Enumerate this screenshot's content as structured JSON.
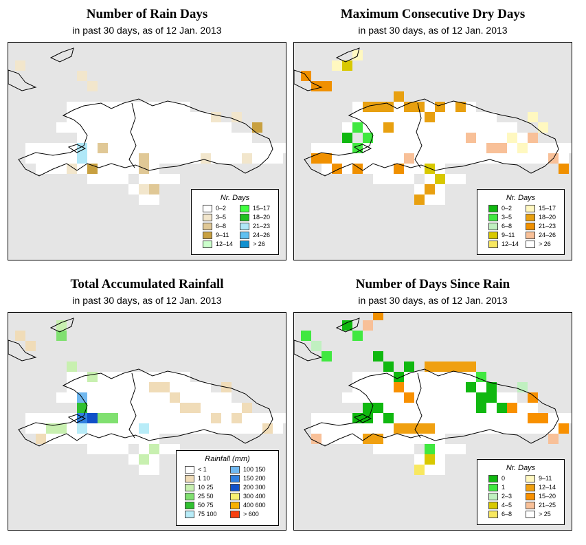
{
  "panels": [
    {
      "id": "rain-days",
      "title": "Number of Rain Days",
      "subtitle": "in past 30 days, as of  12 Jan. 2013",
      "legend": {
        "title": "Nr. Days",
        "cols": [
          [
            {
              "label": "0–2",
              "color": "#ffffff"
            },
            {
              "label": "3–5",
              "color": "#f2e6cc"
            },
            {
              "label": "6–8",
              "color": "#e0c896"
            },
            {
              "label": "9–11",
              "color": "#c8a040"
            },
            {
              "label": "12–14",
              "color": "#ccffcc"
            }
          ],
          [
            {
              "label": "15–17",
              "color": "#40ff40"
            },
            {
              "label": "18–20",
              "color": "#20c020"
            },
            {
              "label": "21–23",
              "color": "#b0e8f8"
            },
            {
              "label": "24–26",
              "color": "#60c0f0"
            },
            {
              "label": "> 26",
              "color": "#1090d0"
            }
          ]
        ]
      }
    },
    {
      "id": "max-dry-days",
      "title": "Maximum Consecutive Dry Days",
      "subtitle": "in past 30 days, as of  12 Jan. 2013",
      "legend": {
        "title": "Nr. Days",
        "cols": [
          [
            {
              "label": "0–2",
              "color": "#10b810"
            },
            {
              "label": "3–5",
              "color": "#40e840"
            },
            {
              "label": "6–8",
              "color": "#c0f0c0"
            },
            {
              "label": "9–11",
              "color": "#d8c800"
            },
            {
              "label": "12–14",
              "color": "#f8e860"
            }
          ],
          [
            {
              "label": "15–17",
              "color": "#fff8c0"
            },
            {
              "label": "18–20",
              "color": "#e8a010"
            },
            {
              "label": "21–23",
              "color": "#f09000"
            },
            {
              "label": "24–26",
              "color": "#f8c098"
            },
            {
              "label": "> 26",
              "color": "#ffffff"
            }
          ]
        ]
      }
    },
    {
      "id": "total-rainfall",
      "title": "Total Accumulated Rainfall",
      "subtitle": "in past 30 days, as of  12 Jan. 2013",
      "legend": {
        "title": "Rainfall (mm)",
        "cols": [
          [
            {
              "label": "< 1",
              "color": "#ffffff"
            },
            {
              "label": "1    10",
              "color": "#f0dcb8"
            },
            {
              "label": "10    25",
              "color": "#c8f0b0"
            },
            {
              "label": "25    50",
              "color": "#80e070"
            },
            {
              "label": "50    75",
              "color": "#30c030"
            },
            {
              "label": "75   100",
              "color": "#b8ecf8"
            }
          ],
          [
            {
              "label": "100   150",
              "color": "#70b8f0"
            },
            {
              "label": "150   200",
              "color": "#3080e0"
            },
            {
              "label": "200   300",
              "color": "#1050c8"
            },
            {
              "label": "300   400",
              "color": "#f8f070"
            },
            {
              "label": "400   600",
              "color": "#f8b000"
            },
            {
              "label": "> 600",
              "color": "#f84010"
            }
          ]
        ]
      }
    },
    {
      "id": "days-since-rain",
      "title": "Number of Days Since Rain",
      "subtitle": "in past 30 days, as of  12 Jan. 2013",
      "legend": {
        "title": "Nr. Days",
        "cols": [
          [
            {
              "label": "0",
              "color": "#10b810"
            },
            {
              "label": "1",
              "color": "#40e840"
            },
            {
              "label": "2–3",
              "color": "#c0f0c0"
            },
            {
              "label": "4–5",
              "color": "#d8c800"
            },
            {
              "label": "6–8",
              "color": "#f8e860"
            }
          ],
          [
            {
              "label": "9–11",
              "color": "#fff8c0"
            },
            {
              "label": "12–14",
              "color": "#f0a010"
            },
            {
              "label": "15–20",
              "color": "#f89000"
            },
            {
              "label": "21–25",
              "color": "#f8c098"
            },
            {
              "label": "> 25",
              "color": "#ffffff"
            }
          ]
        ]
      }
    }
  ]
}
